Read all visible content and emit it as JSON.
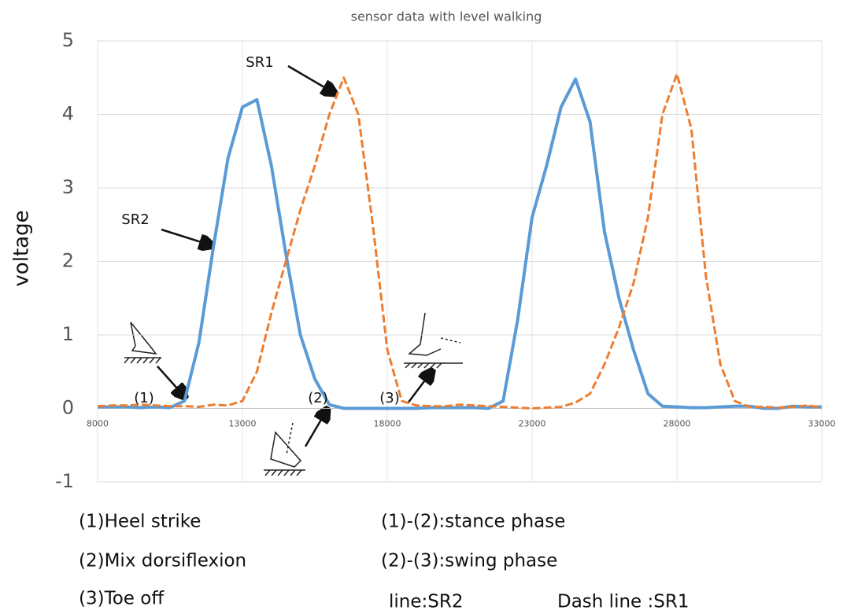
{
  "chart_data": {
    "type": "line",
    "title": "sensor data with level walking",
    "y_label": "voltage",
    "x": [
      8000,
      8500,
      9000,
      9500,
      10000,
      10500,
      11000,
      11500,
      12000,
      12500,
      13000,
      13500,
      14000,
      14500,
      15000,
      15500,
      16000,
      16500,
      17000,
      17500,
      18000,
      18500,
      19000,
      19500,
      20000,
      20500,
      21000,
      21500,
      22000,
      22500,
      23000,
      23500,
      24000,
      24500,
      25000,
      25500,
      26000,
      26500,
      27000,
      27500,
      28000,
      28500,
      29000,
      29500,
      30000,
      30500,
      31000,
      31500,
      32000,
      32500,
      33000
    ],
    "series": [
      {
        "name": "SR2",
        "color": "#5b9bd5",
        "dash": false,
        "values": [
          0.02,
          0.02,
          0.02,
          0.01,
          0.02,
          0.01,
          0.1,
          0.9,
          2.2,
          3.4,
          4.1,
          4.2,
          3.3,
          2.1,
          1.0,
          0.4,
          0.05,
          0,
          0,
          0,
          0,
          0,
          0,
          0.01,
          0.01,
          0.01,
          0.01,
          0,
          0.1,
          1.2,
          2.6,
          3.3,
          4.1,
          4.48,
          3.9,
          2.4,
          1.5,
          0.8,
          0.2,
          0.03,
          0.02,
          0.01,
          0.01,
          0.02,
          0.03,
          0.03,
          0,
          0,
          0.03,
          0.02,
          0.02
        ]
      },
      {
        "name": "SR1",
        "color": "#ed7d31",
        "dash": true,
        "values": [
          0.03,
          0.04,
          0.04,
          0.05,
          0.04,
          0.03,
          0.03,
          0.02,
          0.05,
          0.04,
          0.1,
          0.5,
          1.3,
          2.0,
          2.7,
          3.3,
          4.0,
          4.5,
          4.0,
          2.5,
          0.8,
          0.1,
          0.04,
          0.03,
          0.03,
          0.05,
          0.04,
          0.03,
          0.02,
          0.01,
          0,
          0.01,
          0.02,
          0.08,
          0.2,
          0.6,
          1.1,
          1.7,
          2.6,
          4.0,
          4.55,
          3.8,
          1.8,
          0.6,
          0.1,
          0.02,
          0.02,
          0.01,
          0.02,
          0.04,
          0.01
        ]
      }
    ],
    "xlim": [
      8000,
      33000
    ],
    "xticks": [
      8000,
      13000,
      18000,
      23000,
      28000,
      33000
    ],
    "ylim": [
      -1,
      5
    ],
    "yticks": [
      -1,
      0,
      1,
      2,
      3,
      4,
      5
    ],
    "grid": true,
    "annotations": [
      "SR1",
      "SR2",
      "(1)",
      "(2)",
      "(3)"
    ],
    "notes": [
      "(1)Heel strike",
      "(1)-(2):stance phase",
      "(2)Mix dorsiflexion",
      "(2)-(3):swing phase",
      "(3)Toe off",
      "line:SR2",
      "Dash line  :SR1"
    ]
  }
}
